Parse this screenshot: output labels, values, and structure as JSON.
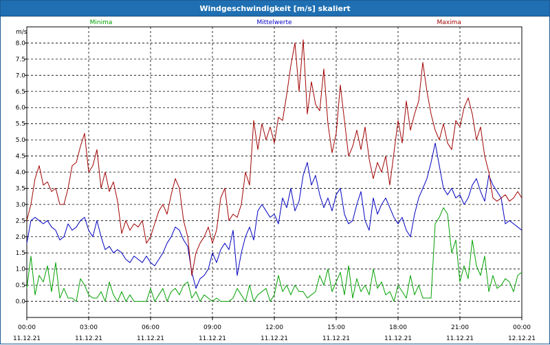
{
  "window": {
    "title": "Windgeschwindigkeit [m/s] skaliert"
  },
  "chart_data": {
    "type": "line",
    "ylabel": "m/s",
    "ylim": [
      -0.5,
      8.5
    ],
    "grid": true,
    "y_ticks": [
      "0.0",
      "0.5",
      "1.0",
      "1.5",
      "2.0",
      "2.5",
      "3.0",
      "3.5",
      "4.0",
      "4.5",
      "5.0",
      "5.5",
      "6.0",
      "6.5",
      "7.0",
      "7.5",
      "8.0"
    ],
    "x_ticks": [
      {
        "time": "00:00",
        "date": "11.12.21",
        "hour": 0
      },
      {
        "time": "03:00",
        "date": "11.12.21",
        "hour": 3
      },
      {
        "time": "06:00",
        "date": "11.12.21",
        "hour": 6
      },
      {
        "time": "09:00",
        "date": "11.12.21",
        "hour": 9
      },
      {
        "time": "12:00",
        "date": "11.12.21",
        "hour": 12
      },
      {
        "time": "15:00",
        "date": "11.12.21",
        "hour": 15
      },
      {
        "time": "18:00",
        "date": "11.12.21",
        "hour": 18
      },
      {
        "time": "21:00",
        "date": "11.12.21",
        "hour": 21
      },
      {
        "time": "00:00",
        "date": "12.12.21",
        "hour": 24
      }
    ],
    "series": [
      {
        "name": "Minima",
        "color": "#00a000",
        "x": [
          0,
          0.2,
          0.4,
          0.6,
          0.8,
          1.0,
          1.2,
          1.4,
          1.6,
          1.8,
          2.0,
          2.2,
          2.4,
          2.6,
          2.8,
          3.0,
          3.2,
          3.4,
          3.6,
          3.8,
          4.0,
          4.2,
          4.4,
          4.6,
          4.8,
          5.0,
          5.2,
          5.4,
          5.6,
          5.8,
          6.0,
          6.2,
          6.4,
          6.6,
          6.8,
          7.0,
          7.2,
          7.4,
          7.6,
          7.8,
          8.0,
          8.2,
          8.4,
          8.6,
          8.8,
          9.0,
          9.2,
          9.4,
          9.6,
          9.8,
          10.0,
          10.2,
          10.4,
          10.6,
          10.8,
          11.0,
          11.2,
          11.4,
          11.6,
          11.8,
          12.0,
          12.2,
          12.4,
          12.6,
          12.8,
          13.0,
          13.2,
          13.4,
          13.6,
          13.8,
          14.0,
          14.2,
          14.4,
          14.6,
          14.8,
          15.0,
          15.2,
          15.4,
          15.6,
          15.8,
          16.0,
          16.2,
          16.4,
          16.6,
          16.8,
          17.0,
          17.2,
          17.4,
          17.6,
          17.8,
          18.0,
          18.2,
          18.4,
          18.6,
          18.8,
          19.0,
          19.2,
          19.4,
          19.6,
          19.8,
          20.0,
          20.2,
          20.4,
          20.6,
          20.8,
          21.0,
          21.2,
          21.4,
          21.6,
          21.8,
          22.0,
          22.2,
          22.4,
          22.6,
          22.8,
          23.0,
          23.2,
          23.4,
          23.6,
          23.8,
          24.0
        ],
        "values": [
          0.4,
          1.4,
          0.2,
          0.8,
          0.6,
          1.1,
          0.3,
          1.2,
          0.1,
          0.4,
          0.1,
          0.1,
          0.0,
          0.7,
          0.5,
          0.2,
          0.1,
          0.1,
          0.3,
          0.0,
          0.6,
          0.2,
          0.0,
          0.3,
          0.0,
          0.2,
          0.0,
          0.0,
          0.0,
          0.0,
          0.4,
          0.0,
          0.2,
          0.4,
          0.0,
          0.3,
          0.4,
          0.2,
          0.5,
          0.6,
          0.1,
          0.3,
          0.0,
          0.2,
          0.1,
          0.0,
          0.1,
          0.0,
          0.0,
          0.0,
          0.1,
          0.4,
          0.2,
          0.0,
          0.5,
          0.0,
          0.2,
          0.3,
          0.4,
          0.0,
          0.2,
          0.8,
          0.3,
          0.5,
          0.2,
          0.5,
          0.3,
          0.3,
          0.1,
          0.2,
          0.3,
          0.8,
          0.5,
          1.0,
          0.3,
          0.6,
          0.9,
          0.2,
          1.1,
          0.1,
          0.7,
          0.3,
          0.5,
          0.2,
          1.0,
          0.4,
          0.6,
          0.2,
          0.3,
          0.0,
          0.5,
          0.3,
          0.1,
          0.8,
          0.2,
          0.5,
          0.1,
          0.1,
          0.1,
          2.4,
          2.6,
          2.9,
          2.7,
          1.5,
          1.9,
          0.6,
          1.1,
          0.7,
          1.9,
          1.1,
          0.8,
          1.4,
          0.3,
          0.8,
          0.4,
          0.5,
          0.7,
          0.6,
          0.3,
          0.8,
          0.9
        ],
        "legend_pos": "left"
      },
      {
        "name": "Mittelwerte",
        "color": "#0000c0",
        "x": [
          0,
          0.2,
          0.4,
          0.6,
          0.8,
          1.0,
          1.2,
          1.4,
          1.6,
          1.8,
          2.0,
          2.2,
          2.4,
          2.6,
          2.8,
          3.0,
          3.2,
          3.4,
          3.6,
          3.8,
          4.0,
          4.2,
          4.4,
          4.6,
          4.8,
          5.0,
          5.2,
          5.4,
          5.6,
          5.8,
          6.0,
          6.2,
          6.4,
          6.6,
          6.8,
          7.0,
          7.2,
          7.4,
          7.6,
          7.8,
          8.0,
          8.2,
          8.4,
          8.6,
          8.8,
          9.0,
          9.2,
          9.4,
          9.6,
          9.8,
          10.0,
          10.2,
          10.4,
          10.6,
          10.8,
          11.0,
          11.2,
          11.4,
          11.6,
          11.8,
          12.0,
          12.2,
          12.4,
          12.6,
          12.8,
          13.0,
          13.2,
          13.4,
          13.6,
          13.8,
          14.0,
          14.2,
          14.4,
          14.6,
          14.8,
          15.0,
          15.2,
          15.4,
          15.6,
          15.8,
          16.0,
          16.2,
          16.4,
          16.6,
          16.8,
          17.0,
          17.2,
          17.4,
          17.6,
          17.8,
          18.0,
          18.2,
          18.4,
          18.6,
          18.8,
          19.0,
          19.2,
          19.4,
          19.6,
          19.8,
          20.0,
          20.2,
          20.4,
          20.6,
          20.8,
          21.0,
          21.2,
          21.4,
          21.6,
          21.8,
          22.0,
          22.2,
          22.4,
          22.6,
          22.8,
          23.0,
          23.2,
          23.4,
          23.6,
          23.8,
          24.0
        ],
        "values": [
          1.8,
          2.5,
          2.6,
          2.5,
          2.4,
          2.5,
          2.3,
          2.2,
          1.9,
          2.0,
          2.4,
          2.2,
          2.3,
          2.5,
          2.6,
          2.2,
          2.0,
          2.5,
          2.0,
          1.6,
          1.7,
          1.5,
          1.6,
          1.5,
          1.3,
          1.2,
          1.4,
          1.3,
          1.2,
          1.4,
          1.2,
          1.1,
          1.3,
          1.5,
          1.8,
          2.0,
          2.3,
          2.2,
          1.9,
          1.7,
          0.9,
          0.4,
          0.7,
          0.8,
          1.0,
          1.5,
          1.2,
          1.6,
          1.8,
          1.6,
          2.2,
          0.8,
          1.5,
          2.0,
          2.3,
          1.9,
          2.8,
          3.0,
          2.8,
          2.6,
          2.7,
          2.4,
          3.2,
          2.9,
          3.5,
          2.8,
          3.1,
          3.9,
          4.3,
          3.6,
          3.9,
          3.3,
          2.9,
          3.2,
          2.8,
          3.3,
          3.5,
          2.7,
          2.4,
          2.5,
          3.0,
          3.4,
          2.5,
          2.2,
          3.2,
          2.7,
          3.0,
          3.2,
          2.9,
          2.6,
          2.4,
          2.6,
          2.2,
          2.0,
          2.7,
          3.2,
          3.5,
          3.8,
          4.3,
          4.9,
          4.2,
          3.5,
          3.3,
          3.5,
          3.2,
          3.3,
          3.0,
          3.2,
          3.6,
          3.8,
          3.4,
          3.1,
          3.9,
          3.6,
          3.4,
          3.2,
          2.4,
          2.5,
          2.4,
          2.3,
          2.2
        ],
        "legend_pos": "center"
      },
      {
        "name": "Maxima",
        "color": "#a00000",
        "x": [
          0,
          0.2,
          0.4,
          0.6,
          0.8,
          1.0,
          1.2,
          1.4,
          1.6,
          1.8,
          2.0,
          2.2,
          2.4,
          2.6,
          2.8,
          3.0,
          3.2,
          3.4,
          3.6,
          3.8,
          4.0,
          4.2,
          4.4,
          4.6,
          4.8,
          5.0,
          5.2,
          5.4,
          5.6,
          5.8,
          6.0,
          6.2,
          6.4,
          6.6,
          6.8,
          7.0,
          7.2,
          7.4,
          7.6,
          7.8,
          8.0,
          8.2,
          8.4,
          8.6,
          8.8,
          9.0,
          9.2,
          9.4,
          9.6,
          9.8,
          10.0,
          10.2,
          10.4,
          10.6,
          10.8,
          11.0,
          11.2,
          11.4,
          11.6,
          11.8,
          12.0,
          12.2,
          12.4,
          12.6,
          12.8,
          13.0,
          13.2,
          13.4,
          13.6,
          13.8,
          14.0,
          14.2,
          14.4,
          14.6,
          14.8,
          15.0,
          15.2,
          15.4,
          15.6,
          15.8,
          16.0,
          16.2,
          16.4,
          16.6,
          16.8,
          17.0,
          17.2,
          17.4,
          17.6,
          17.8,
          18.0,
          18.2,
          18.4,
          18.6,
          18.8,
          19.0,
          19.2,
          19.4,
          19.6,
          19.8,
          20.0,
          20.2,
          20.4,
          20.6,
          20.8,
          21.0,
          21.2,
          21.4,
          21.6,
          21.8,
          22.0,
          22.2,
          22.4,
          22.6,
          22.8,
          23.0,
          23.2,
          23.4,
          23.6,
          23.8,
          24.0
        ],
        "values": [
          2.5,
          3.0,
          3.8,
          4.2,
          3.6,
          3.7,
          3.4,
          3.5,
          3.0,
          3.0,
          3.5,
          4.2,
          4.3,
          4.8,
          5.2,
          4.0,
          4.2,
          4.7,
          3.5,
          4.0,
          3.4,
          3.7,
          3.1,
          2.1,
          2.5,
          2.2,
          2.4,
          2.3,
          2.5,
          1.8,
          2.0,
          2.4,
          2.8,
          3.0,
          2.7,
          3.3,
          3.8,
          3.5,
          2.5,
          2.0,
          0.8,
          1.5,
          1.8,
          2.0,
          2.3,
          1.8,
          2.2,
          3.2,
          3.5,
          2.5,
          2.7,
          2.6,
          3.0,
          4.0,
          3.6,
          5.6,
          4.7,
          5.5,
          5.0,
          5.4,
          4.9,
          5.7,
          5.6,
          6.4,
          7.3,
          8.0,
          6.5,
          8.1,
          5.8,
          6.8,
          6.1,
          5.9,
          7.2,
          5.5,
          4.6,
          5.2,
          6.7,
          5.6,
          4.5,
          4.8,
          5.3,
          4.7,
          5.4,
          4.4,
          3.8,
          4.3,
          4.0,
          4.5,
          3.6,
          4.6,
          5.6,
          4.9,
          6.2,
          5.3,
          5.8,
          6.2,
          7.4,
          6.5,
          5.8,
          5.3,
          5.0,
          5.5,
          4.9,
          4.7,
          5.6,
          5.4,
          6.0,
          6.3,
          5.8,
          5.0,
          5.4,
          4.5,
          4.0,
          3.2,
          3.1,
          3.2,
          3.3,
          3.1,
          3.2,
          3.4,
          3.2
        ],
        "legend_pos": "right"
      }
    ]
  }
}
